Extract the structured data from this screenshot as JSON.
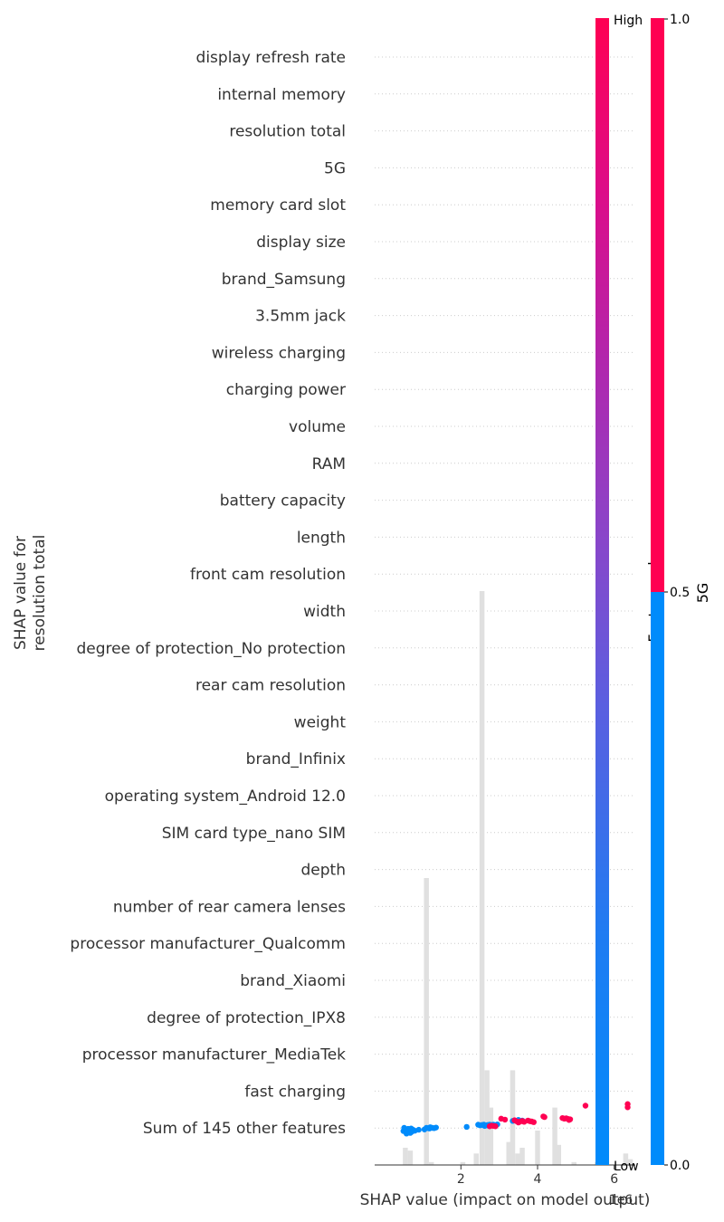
{
  "chart_data": {
    "type": "scatter",
    "title": "",
    "xlabel": "SHAP value (impact on model output)",
    "x_offset_label": "1e6",
    "ylabel": [
      "SHAP value for",
      "resolution total"
    ],
    "xlim": [
      -0.25,
      6.55
    ],
    "xticks": [
      2,
      4,
      6
    ],
    "features": [
      "display refresh rate",
      "internal memory",
      "resolution total",
      "5G",
      "memory card slot",
      "display size",
      "brand_Samsung",
      "3.5mm jack",
      "wireless charging",
      "charging power",
      "volume",
      "RAM",
      "battery capacity",
      "length",
      "front cam resolution",
      "width",
      "degree of protection_No protection",
      "rear cam resolution",
      "weight",
      "brand_Infinix",
      "operating system_Android 12.0",
      "SIM card type_nano SIM",
      "depth",
      "number of rear camera lenses",
      "processor manufacturer_Qualcomm",
      "brand_Xiaomi",
      "degree of protection_IPX8",
      "processor manufacturer_MediaTek",
      "fast charging",
      "Sum of 145 other features"
    ],
    "histogram": {
      "bin_width": 0.13,
      "bins": [
        [
          0.55,
          0.06
        ],
        [
          0.68,
          0.05
        ],
        [
          1.1,
          1.0
        ],
        [
          1.23,
          0.01
        ],
        [
          2.05,
          0.01
        ],
        [
          2.4,
          0.04
        ],
        [
          2.55,
          2.0
        ],
        [
          2.68,
          0.33
        ],
        [
          2.78,
          0.2
        ],
        [
          3.25,
          0.08
        ],
        [
          3.35,
          0.33
        ],
        [
          3.48,
          0.04
        ],
        [
          3.6,
          0.06
        ],
        [
          4.0,
          0.12
        ],
        [
          4.45,
          0.2
        ],
        [
          4.55,
          0.07
        ],
        [
          4.95,
          0.01
        ],
        [
          5.55,
          0.01
        ],
        [
          5.7,
          0.02
        ],
        [
          6.3,
          0.04
        ],
        [
          6.42,
          0.02
        ]
      ]
    },
    "points": [
      {
        "x": 0.5,
        "y": -0.1,
        "v": 0
      },
      {
        "x": 0.55,
        "y": -0.05,
        "v": 0
      },
      {
        "x": 0.6,
        "y": -0.15,
        "v": 0
      },
      {
        "x": 0.65,
        "y": -0.08,
        "v": 0
      },
      {
        "x": 0.7,
        "y": -0.02,
        "v": 0
      },
      {
        "x": 0.72,
        "y": -0.12,
        "v": 0
      },
      {
        "x": 0.75,
        "y": -0.06,
        "v": 0
      },
      {
        "x": 0.8,
        "y": -0.09,
        "v": 0
      },
      {
        "x": 0.58,
        "y": -0.18,
        "v": 0
      },
      {
        "x": 0.68,
        "y": -0.16,
        "v": 0
      },
      {
        "x": 0.52,
        "y": 0.0,
        "v": 0
      },
      {
        "x": 0.62,
        "y": -0.03,
        "v": 0
      },
      {
        "x": 0.9,
        "y": -0.06,
        "v": 0
      },
      {
        "x": 1.05,
        "y": -0.05,
        "v": 0
      },
      {
        "x": 1.1,
        "y": 0.0,
        "v": 0
      },
      {
        "x": 1.15,
        "y": -0.01,
        "v": 0
      },
      {
        "x": 1.2,
        "y": 0.02,
        "v": 0
      },
      {
        "x": 1.25,
        "y": 0.0,
        "v": 0
      },
      {
        "x": 1.3,
        "y": -0.01,
        "v": 0
      },
      {
        "x": 1.35,
        "y": 0.01,
        "v": 0
      },
      {
        "x": 1.18,
        "y": -0.02,
        "v": 0
      },
      {
        "x": 2.15,
        "y": 0.03,
        "v": 0
      },
      {
        "x": 2.45,
        "y": 0.1,
        "v": 0
      },
      {
        "x": 2.5,
        "y": 0.08,
        "v": 0
      },
      {
        "x": 2.55,
        "y": 0.09,
        "v": 0
      },
      {
        "x": 2.6,
        "y": 0.1,
        "v": 0
      },
      {
        "x": 2.65,
        "y": 0.08,
        "v": 0
      },
      {
        "x": 2.7,
        "y": 0.09,
        "v": 0
      },
      {
        "x": 2.75,
        "y": 0.1,
        "v": 0
      },
      {
        "x": 2.8,
        "y": 0.09,
        "v": 0
      },
      {
        "x": 2.85,
        "y": 0.1,
        "v": 0
      },
      {
        "x": 2.9,
        "y": 0.08,
        "v": 0
      },
      {
        "x": 2.95,
        "y": 0.11,
        "v": 0
      },
      {
        "x": 2.62,
        "y": 0.06,
        "v": 0
      },
      {
        "x": 2.72,
        "y": 0.07,
        "v": 0
      },
      {
        "x": 3.5,
        "y": 0.25,
        "v": 0
      },
      {
        "x": 3.6,
        "y": 0.23,
        "v": 0
      },
      {
        "x": 3.35,
        "y": 0.22,
        "v": 0
      },
      {
        "x": 2.75,
        "y": 0.05,
        "v": 1
      },
      {
        "x": 2.8,
        "y": 0.07,
        "v": 1
      },
      {
        "x": 2.85,
        "y": 0.06,
        "v": 1
      },
      {
        "x": 2.9,
        "y": 0.05,
        "v": 1
      },
      {
        "x": 3.05,
        "y": 0.29,
        "v": 1
      },
      {
        "x": 3.15,
        "y": 0.26,
        "v": 1
      },
      {
        "x": 3.4,
        "y": 0.24,
        "v": 1
      },
      {
        "x": 3.45,
        "y": 0.21,
        "v": 1
      },
      {
        "x": 3.5,
        "y": 0.17,
        "v": 1
      },
      {
        "x": 3.55,
        "y": 0.2,
        "v": 1
      },
      {
        "x": 3.6,
        "y": 0.22,
        "v": 1
      },
      {
        "x": 3.65,
        "y": 0.19,
        "v": 1
      },
      {
        "x": 3.75,
        "y": 0.23,
        "v": 1
      },
      {
        "x": 3.8,
        "y": 0.21,
        "v": 1
      },
      {
        "x": 3.85,
        "y": 0.2,
        "v": 1
      },
      {
        "x": 3.9,
        "y": 0.18,
        "v": 1
      },
      {
        "x": 4.15,
        "y": 0.36,
        "v": 1
      },
      {
        "x": 4.18,
        "y": 0.34,
        "v": 1
      },
      {
        "x": 4.65,
        "y": 0.31,
        "v": 1
      },
      {
        "x": 4.7,
        "y": 0.29,
        "v": 1
      },
      {
        "x": 4.75,
        "y": 0.3,
        "v": 1
      },
      {
        "x": 4.8,
        "y": 0.28,
        "v": 1
      },
      {
        "x": 4.82,
        "y": 0.25,
        "v": 1
      },
      {
        "x": 4.85,
        "y": 0.27,
        "v": 1
      },
      {
        "x": 5.25,
        "y": 0.7,
        "v": 1
      },
      {
        "x": 5.75,
        "y": 0.68,
        "v": 1
      },
      {
        "x": 6.35,
        "y": 0.75,
        "v": 1
      },
      {
        "x": 6.35,
        "y": 0.65,
        "v": 1
      }
    ],
    "colorbar_left": {
      "label_high": "High",
      "label_low": "Low",
      "title": "Feature value",
      "colors": [
        "#008bfb",
        "#ff0052"
      ]
    },
    "colorbar_right": {
      "ticks": [
        "0.0",
        "0.5",
        "1.0"
      ],
      "title": "5G",
      "low_color": "#008bfb",
      "high_color": "#ff0052"
    },
    "grid": "dotted horizontal",
    "hist_color": "#e0e0e0"
  }
}
